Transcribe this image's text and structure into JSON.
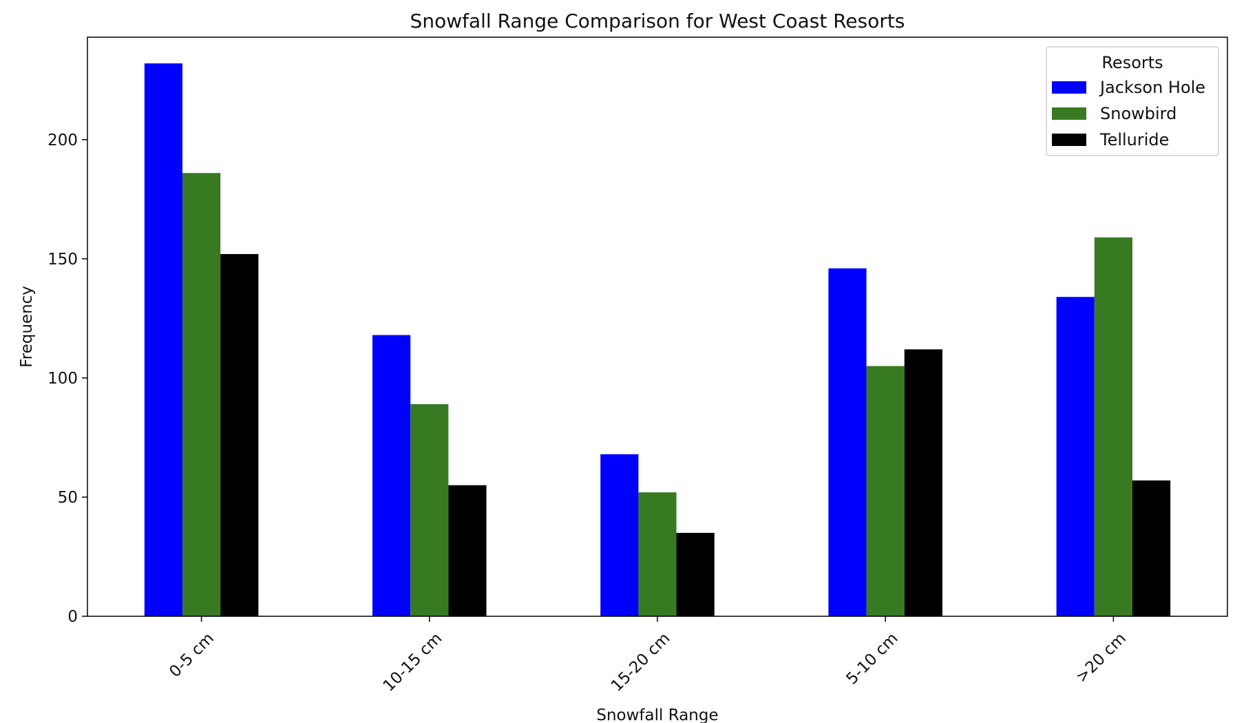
{
  "chart_data": {
    "type": "bar",
    "title": "Snowfall Range Comparison for West Coast Resorts",
    "xlabel": "Snowfall Range",
    "ylabel": "Frequency",
    "categories": [
      "0-5 cm",
      "10-15 cm",
      "15-20 cm",
      "5-10 cm",
      ">20 cm"
    ],
    "series": [
      {
        "name": "Jackson Hole",
        "color": "#0000ff",
        "values": [
          232,
          118,
          68,
          146,
          134
        ]
      },
      {
        "name": "Snowbird",
        "color": "#387a22",
        "values": [
          186,
          89,
          52,
          105,
          159
        ]
      },
      {
        "name": "Telluride",
        "color": "#000000",
        "values": [
          152,
          55,
          35,
          112,
          57
        ]
      }
    ],
    "ylim": [
      0,
      243
    ],
    "yticks": [
      0,
      50,
      100,
      150,
      200
    ],
    "legend": {
      "title": "Resorts",
      "position": "top-right"
    },
    "grid": false
  }
}
